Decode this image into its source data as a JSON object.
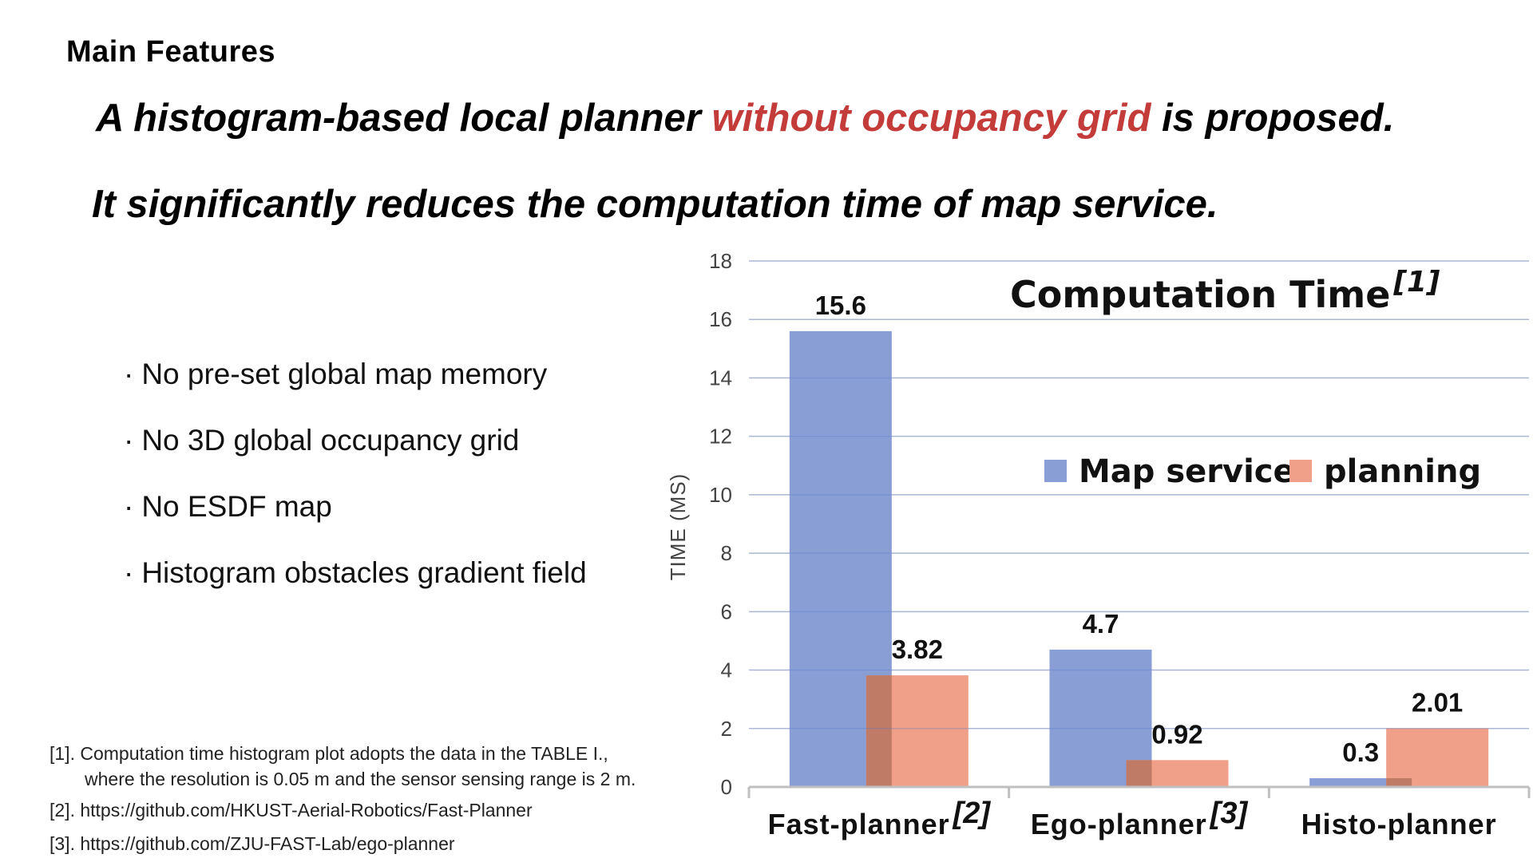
{
  "heading": "Main Features",
  "headline1": {
    "before": "A histogram-based local planner ",
    "highlight": "without occupancy grid",
    "after": " is proposed."
  },
  "headline2": "It significantly reduces the computation time of map service.",
  "colors": {
    "highlight": "#c43c3a",
    "map_service": "#8a9ed6",
    "planning": "#f0a088",
    "overlap": "#c07b66",
    "grid": "#d9d9d9",
    "axis": "#bfbfbf"
  },
  "features": [
    "No pre-set global map memory",
    "No 3D global occupancy grid",
    "No ESDF map",
    "Histogram obstacles gradient field"
  ],
  "bullet_glyph": "·",
  "references": {
    "ref1_line1": "[1]. Computation time histogram plot adopts the data in the TABLE I.,",
    "ref1_line2": "where the resolution is 0.05 m and the sensor sensing range is 2 m.",
    "ref2": "[2]. https://github.com/HKUST-Aerial-Robotics/Fast-Planner",
    "ref3": "[3]. https://github.com/ZJU-FAST-Lab/ego-planner"
  },
  "chart_data": {
    "type": "bar",
    "title": "Computation Time",
    "title_ref": "[1]",
    "ylabel": "TIME (MS)",
    "xlabel": "",
    "ylim": [
      0,
      18
    ],
    "yticks": [
      0,
      2,
      4,
      6,
      8,
      10,
      12,
      14,
      16,
      18
    ],
    "grid": true,
    "legend_position": "right",
    "categories": [
      "Fast-planner",
      "Ego-planner",
      "Histo-planner"
    ],
    "category_refs": [
      "[2]",
      "[3]",
      ""
    ],
    "series": [
      {
        "name": "Map service",
        "values": [
          15.6,
          4.7,
          0.3
        ],
        "labels": [
          "15.6",
          "4.7",
          "0.3"
        ]
      },
      {
        "name": "planning",
        "values": [
          3.82,
          0.92,
          2.01
        ],
        "labels": [
          "3.82",
          "0.92",
          "2.01"
        ]
      }
    ]
  }
}
